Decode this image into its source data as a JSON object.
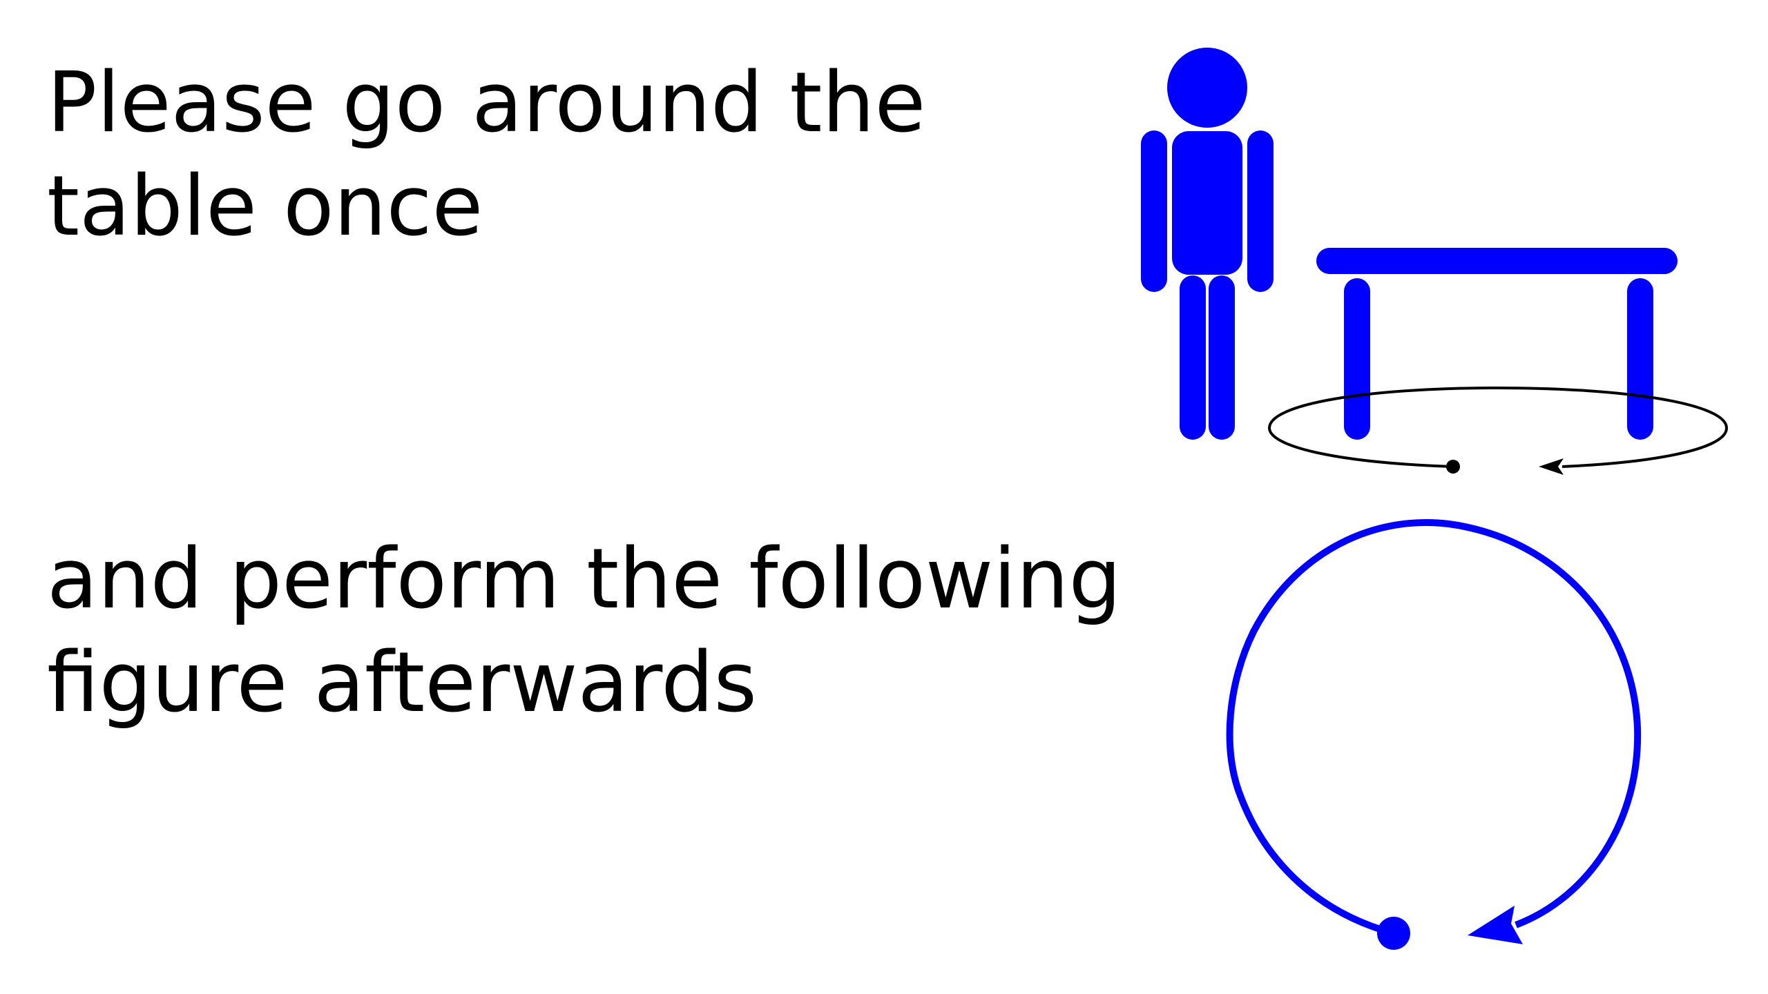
{
  "instructions": {
    "step1": {
      "line1": "Please go around the",
      "line2": "table once"
    },
    "step2": {
      "line1": "and perform the following",
      "line2": "figure afterwards"
    }
  },
  "illustration": {
    "icons": [
      "person-icon",
      "table-icon",
      "walk-around-path-icon",
      "circular-figure-path-icon"
    ]
  },
  "colors": {
    "figure": "#0000ff",
    "path": "#000000",
    "text": "#000000",
    "background": "#ffffff"
  }
}
